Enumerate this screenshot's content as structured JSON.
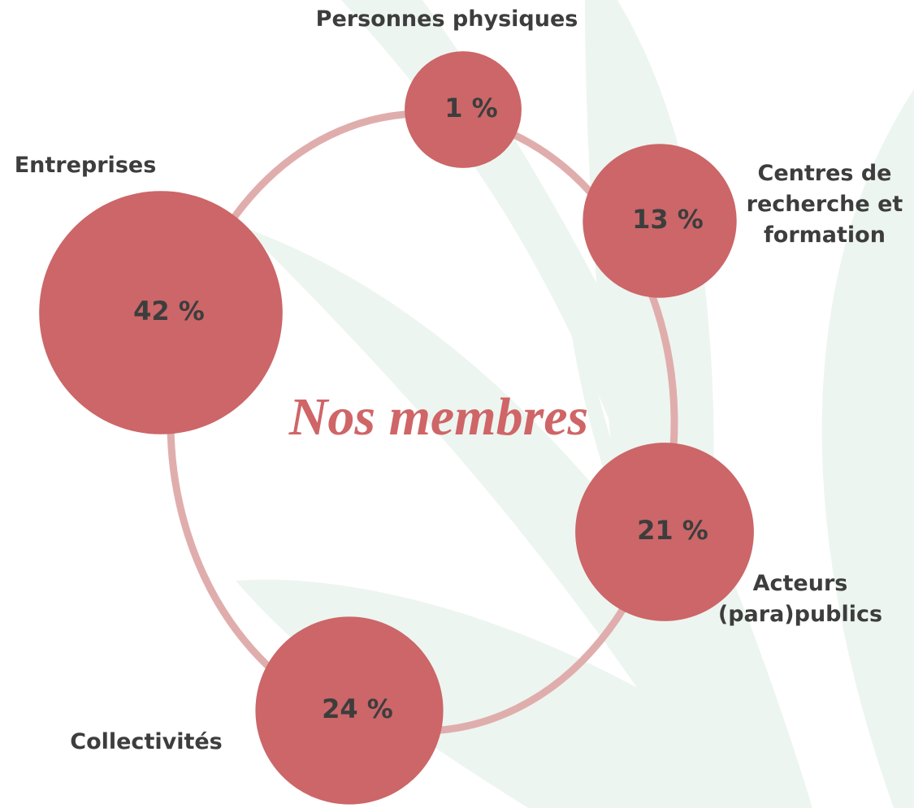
{
  "chart_data": {
    "type": "bubble",
    "title": "Nos membres",
    "categories": [
      "Entreprises",
      "Personnes physiques",
      "Centres de recherche et formation",
      "Acteurs (para)publics",
      "Collectivités"
    ],
    "values": [
      42,
      1,
      13,
      21,
      24
    ],
    "value_labels": [
      "42 %",
      "1 %",
      "13 %",
      "21 %",
      "24 %"
    ],
    "color": "#cc6668"
  }
}
